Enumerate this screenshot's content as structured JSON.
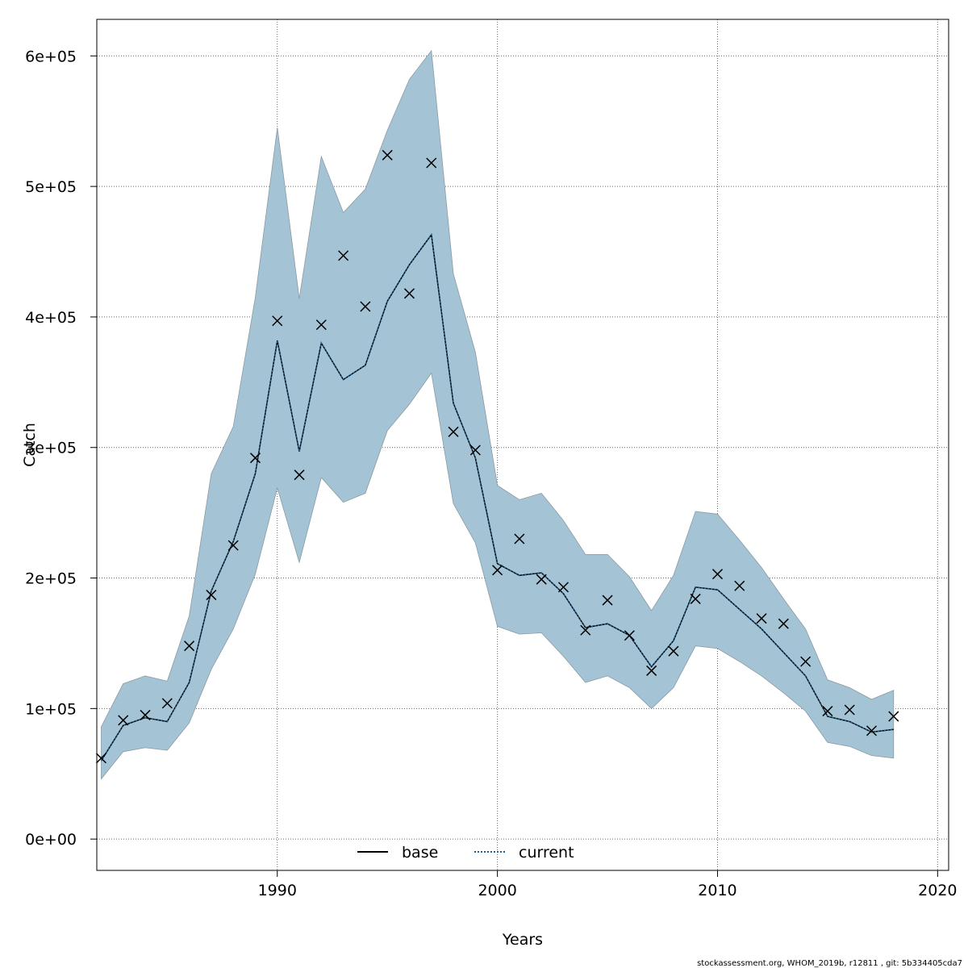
{
  "chart_data": {
    "type": "line",
    "title": "",
    "xlabel": "Years",
    "ylabel": "Catch",
    "xlim": [
      1981.8,
      2020.5
    ],
    "ylim": [
      -24000,
      628000
    ],
    "x_ticks": [
      1990,
      2000,
      2010,
      2020
    ],
    "x_tick_labels": [
      "1990",
      "2000",
      "2010",
      "2020"
    ],
    "y_ticks": [
      0,
      100000,
      200000,
      300000,
      400000,
      500000,
      600000
    ],
    "y_tick_labels": [
      "0e+00",
      "1e+05",
      "2e+05",
      "3e+05",
      "4e+05",
      "5e+05",
      "6e+05"
    ],
    "grid": true,
    "legend_position": "bottom-center",
    "legend": [
      "base",
      "current"
    ],
    "years": [
      1982,
      1983,
      1984,
      1985,
      1986,
      1987,
      1988,
      1989,
      1990,
      1991,
      1992,
      1993,
      1994,
      1995,
      1996,
      1997,
      1998,
      1999,
      2000,
      2001,
      2002,
      2003,
      2004,
      2005,
      2006,
      2007,
      2008,
      2009,
      2010,
      2011,
      2012,
      2013,
      2014,
      2015,
      2016,
      2017,
      2018
    ],
    "observed_catch": [
      62000,
      91000,
      95000,
      104000,
      148000,
      187000,
      225000,
      292000,
      397000,
      279000,
      394000,
      447000,
      408000,
      524000,
      418000,
      518000,
      312000,
      298000,
      206000,
      230000,
      199000,
      193000,
      160000,
      183000,
      156000,
      129000,
      144000,
      184000,
      203000,
      194000,
      169000,
      165000,
      136000,
      98000,
      99000,
      83000,
      94000
    ],
    "series": [
      {
        "name": "base",
        "style": "solid",
        "color": "#000000",
        "values": [
          60000,
          87000,
          93000,
          90000,
          120000,
          190000,
          228000,
          280000,
          382000,
          297000,
          380000,
          352000,
          363000,
          412000,
          440000,
          463000,
          334000,
          292000,
          211000,
          202000,
          204000,
          188000,
          162000,
          165000,
          156000,
          132000,
          152000,
          193000,
          191000,
          176000,
          161000,
          143000,
          125000,
          94000,
          90000,
          82000,
          84000
        ]
      },
      {
        "name": "current",
        "style": "dotted",
        "color": "#1f5f8b",
        "values": [
          60000,
          87000,
          93000,
          90000,
          120000,
          190000,
          228000,
          280000,
          382000,
          297000,
          380000,
          352000,
          363000,
          412000,
          440000,
          463000,
          334000,
          292000,
          211000,
          202000,
          204000,
          188000,
          162000,
          165000,
          156000,
          132000,
          152000,
          193000,
          191000,
          176000,
          161000,
          143000,
          125000,
          94000,
          90000,
          82000,
          84000
        ]
      }
    ],
    "ci_upper": [
      86000,
      119000,
      125000,
      121000,
      171000,
      280000,
      316000,
      415000,
      545000,
      414000,
      523000,
      480000,
      498000,
      543000,
      582000,
      604000,
      433000,
      373000,
      271000,
      260000,
      265000,
      244000,
      218000,
      218000,
      201000,
      175000,
      202000,
      251000,
      249000,
      229000,
      208000,
      184000,
      161000,
      122000,
      116000,
      107000,
      114000
    ],
    "ci_lower": [
      46000,
      67000,
      70000,
      68000,
      89000,
      130000,
      161000,
      203000,
      269000,
      212000,
      277000,
      258000,
      265000,
      313000,
      333000,
      357000,
      257000,
      227000,
      163000,
      157000,
      158000,
      140000,
      120000,
      125000,
      116000,
      100000,
      116000,
      148000,
      146000,
      136000,
      125000,
      112000,
      98000,
      74000,
      71000,
      64000,
      62000
    ],
    "colors": {
      "ci_fill": "#a4c4d6",
      "ci_edge": "#8a9aa3",
      "grid": "#666666",
      "base": "#000000",
      "current": "#1f5f8b"
    }
  },
  "footer": "stockassessment.org, WHOM_2019b, r12811 , git: 5b334405cda7"
}
